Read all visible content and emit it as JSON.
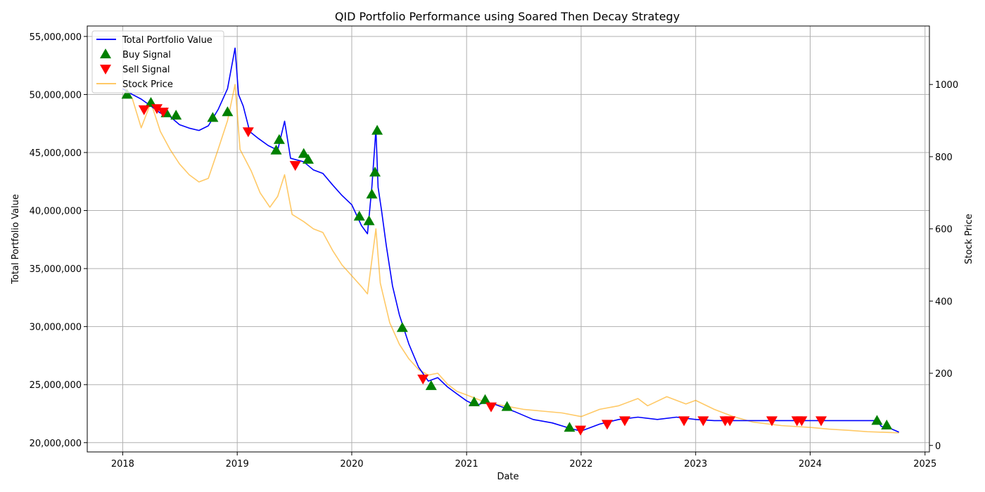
{
  "chart_data": {
    "type": "line",
    "title": "QID Portfolio Performance using Soared Then Decay Strategy",
    "xlabel": "Date",
    "ylabel_left": "Total Portfolio Value",
    "ylabel_right": "Stock Price",
    "x_ticks": [
      "2018",
      "2019",
      "2020",
      "2021",
      "2022",
      "2023",
      "2024",
      "2025"
    ],
    "x_range": [
      "2017-09-10",
      "2025-01-15"
    ],
    "y_left_range": [
      19200000,
      55900000
    ],
    "y_left_ticks": [
      20000000,
      25000000,
      30000000,
      35000000,
      40000000,
      45000000,
      50000000,
      55000000
    ],
    "y_left_tick_labels": [
      "20,000,000",
      "25,000,000",
      "30,000,000",
      "35,000,000",
      "40,000,000",
      "45,000,000",
      "50,000,000",
      "55,000,000"
    ],
    "y_right_range": [
      -18,
      1162
    ],
    "y_right_ticks": [
      0,
      200,
      400,
      600,
      800,
      1000
    ],
    "y_right_tick_labels": [
      "0",
      "200",
      "400",
      "600",
      "800",
      "1000"
    ],
    "grid": true,
    "legend_position": "top-left",
    "colors": {
      "portfolio": "#0000ff",
      "buy": "#008000",
      "sell": "#ff0000",
      "stock": "#ffa500"
    },
    "series": [
      {
        "name": "Total Portfolio Value",
        "axis": "left",
        "points": [
          [
            "2018-01-01",
            50500000
          ],
          [
            "2018-02-01",
            50000000
          ],
          [
            "2018-03-01",
            49600000
          ],
          [
            "2018-04-01",
            49000000
          ],
          [
            "2018-05-01",
            48400000
          ],
          [
            "2018-06-01",
            48100000
          ],
          [
            "2018-07-01",
            47400000
          ],
          [
            "2018-08-01",
            47100000
          ],
          [
            "2018-09-01",
            46900000
          ],
          [
            "2018-10-01",
            47300000
          ],
          [
            "2018-11-01",
            48700000
          ],
          [
            "2018-12-01",
            50500000
          ],
          [
            "2018-12-25",
            54000000
          ],
          [
            "2019-01-05",
            50000000
          ],
          [
            "2019-01-20",
            49000000
          ],
          [
            "2019-02-10",
            46800000
          ],
          [
            "2019-03-10",
            46200000
          ],
          [
            "2019-04-10",
            45600000
          ],
          [
            "2019-05-10",
            45200000
          ],
          [
            "2019-06-01",
            47700000
          ],
          [
            "2019-06-20",
            44500000
          ],
          [
            "2019-08-01",
            44200000
          ],
          [
            "2019-09-01",
            43500000
          ],
          [
            "2019-10-01",
            43200000
          ],
          [
            "2019-11-01",
            42200000
          ],
          [
            "2019-12-01",
            41300000
          ],
          [
            "2020-01-01",
            40500000
          ],
          [
            "2020-02-01",
            38700000
          ],
          [
            "2020-02-20",
            38000000
          ],
          [
            "2020-03-05",
            42000000
          ],
          [
            "2020-03-18",
            47000000
          ],
          [
            "2020-03-25",
            42000000
          ],
          [
            "2020-04-05",
            40000000
          ],
          [
            "2020-04-20",
            37000000
          ],
          [
            "2020-05-10",
            33500000
          ],
          [
            "2020-06-01",
            31000000
          ],
          [
            "2020-07-01",
            28500000
          ],
          [
            "2020-08-01",
            26500000
          ],
          [
            "2020-09-01",
            25300000
          ],
          [
            "2020-10-01",
            25600000
          ],
          [
            "2020-11-01",
            24800000
          ],
          [
            "2020-12-01",
            24200000
          ],
          [
            "2021-01-01",
            23600000
          ],
          [
            "2021-02-01",
            23200000
          ],
          [
            "2021-03-01",
            23500000
          ],
          [
            "2021-04-01",
            23300000
          ],
          [
            "2021-06-01",
            22700000
          ],
          [
            "2021-08-01",
            22000000
          ],
          [
            "2021-10-01",
            21700000
          ],
          [
            "2021-12-01",
            21200000
          ],
          [
            "2022-01-01",
            21000000
          ],
          [
            "2022-03-01",
            21600000
          ],
          [
            "2022-05-01",
            22000000
          ],
          [
            "2022-07-01",
            22200000
          ],
          [
            "2022-09-01",
            22000000
          ],
          [
            "2022-11-01",
            22200000
          ],
          [
            "2023-01-01",
            22000000
          ],
          [
            "2023-03-01",
            21900000
          ],
          [
            "2023-06-01",
            21900000
          ],
          [
            "2024-01-01",
            21900000
          ],
          [
            "2024-07-31",
            21900000
          ],
          [
            "2024-08-15",
            21400000
          ],
          [
            "2024-09-15",
            21200000
          ],
          [
            "2024-10-10",
            20900000
          ]
        ]
      },
      {
        "name": "Stock Price",
        "axis": "right",
        "points": [
          [
            "2018-01-01",
            1000
          ],
          [
            "2018-02-01",
            960
          ],
          [
            "2018-03-01",
            880
          ],
          [
            "2018-04-01",
            950
          ],
          [
            "2018-05-01",
            870
          ],
          [
            "2018-06-01",
            820
          ],
          [
            "2018-07-01",
            780
          ],
          [
            "2018-08-01",
            750
          ],
          [
            "2018-09-01",
            730
          ],
          [
            "2018-10-01",
            740
          ],
          [
            "2018-11-01",
            820
          ],
          [
            "2018-12-01",
            900
          ],
          [
            "2018-12-25",
            1000
          ],
          [
            "2019-01-10",
            820
          ],
          [
            "2019-02-15",
            760
          ],
          [
            "2019-03-15",
            700
          ],
          [
            "2019-04-15",
            660
          ],
          [
            "2019-05-10",
            690
          ],
          [
            "2019-06-01",
            750
          ],
          [
            "2019-06-25",
            640
          ],
          [
            "2019-08-01",
            620
          ],
          [
            "2019-09-01",
            600
          ],
          [
            "2019-10-01",
            590
          ],
          [
            "2019-11-01",
            540
          ],
          [
            "2019-12-01",
            500
          ],
          [
            "2020-01-01",
            470
          ],
          [
            "2020-02-01",
            440
          ],
          [
            "2020-02-20",
            420
          ],
          [
            "2020-03-18",
            600
          ],
          [
            "2020-04-01",
            450
          ],
          [
            "2020-05-01",
            340
          ],
          [
            "2020-06-01",
            280
          ],
          [
            "2020-07-01",
            240
          ],
          [
            "2020-08-01",
            210
          ],
          [
            "2020-09-01",
            195
          ],
          [
            "2020-10-01",
            200
          ],
          [
            "2020-11-01",
            170
          ],
          [
            "2020-12-01",
            150
          ],
          [
            "2021-01-01",
            140
          ],
          [
            "2021-03-01",
            120
          ],
          [
            "2021-05-01",
            110
          ],
          [
            "2021-07-01",
            100
          ],
          [
            "2021-09-01",
            95
          ],
          [
            "2021-11-01",
            90
          ],
          [
            "2022-01-01",
            80
          ],
          [
            "2022-03-01",
            100
          ],
          [
            "2022-05-01",
            110
          ],
          [
            "2022-07-01",
            130
          ],
          [
            "2022-08-01",
            110
          ],
          [
            "2022-10-01",
            135
          ],
          [
            "2022-12-01",
            115
          ],
          [
            "2023-01-01",
            125
          ],
          [
            "2023-03-01",
            100
          ],
          [
            "2023-05-01",
            80
          ],
          [
            "2023-07-01",
            65
          ],
          [
            "2023-10-01",
            55
          ],
          [
            "2024-01-01",
            50
          ],
          [
            "2024-03-01",
            45
          ],
          [
            "2024-05-01",
            42
          ],
          [
            "2024-07-01",
            38
          ],
          [
            "2024-10-10",
            35
          ]
        ]
      },
      {
        "name": "Buy Signal",
        "axis": "left",
        "marker": "triangle-up",
        "points": [
          [
            "2018-01-15",
            50000000
          ],
          [
            "2018-04-01",
            49300000
          ],
          [
            "2018-05-20",
            48400000
          ],
          [
            "2018-06-20",
            48200000
          ],
          [
            "2018-10-15",
            48000000
          ],
          [
            "2018-12-01",
            48500000
          ],
          [
            "2019-05-05",
            45200000
          ],
          [
            "2019-05-15",
            46100000
          ],
          [
            "2019-08-01",
            44900000
          ],
          [
            "2019-08-15",
            44400000
          ],
          [
            "2020-01-25",
            39500000
          ],
          [
            "2020-02-25",
            39100000
          ],
          [
            "2020-03-05",
            41400000
          ],
          [
            "2020-03-15",
            43300000
          ],
          [
            "2020-03-22",
            46900000
          ],
          [
            "2020-06-10",
            29900000
          ],
          [
            "2020-09-10",
            24900000
          ],
          [
            "2021-01-25",
            23500000
          ],
          [
            "2021-03-01",
            23700000
          ],
          [
            "2021-05-10",
            23100000
          ],
          [
            "2021-11-25",
            21300000
          ],
          [
            "2024-08-01",
            21900000
          ],
          [
            "2024-09-01",
            21500000
          ]
        ]
      },
      {
        "name": "Sell Signal",
        "axis": "left",
        "marker": "triangle-down",
        "points": [
          [
            "2018-03-10",
            48700000
          ],
          [
            "2018-04-20",
            48800000
          ],
          [
            "2018-05-10",
            48500000
          ],
          [
            "2019-02-05",
            46800000
          ],
          [
            "2019-07-05",
            43900000
          ],
          [
            "2020-08-15",
            25500000
          ],
          [
            "2021-03-20",
            23100000
          ],
          [
            "2021-12-30",
            21100000
          ],
          [
            "2022-03-25",
            21600000
          ],
          [
            "2022-05-20",
            21900000
          ],
          [
            "2022-11-25",
            21900000
          ],
          [
            "2023-01-25",
            21900000
          ],
          [
            "2023-04-05",
            21900000
          ],
          [
            "2023-04-20",
            21900000
          ],
          [
            "2023-09-01",
            21900000
          ],
          [
            "2023-11-20",
            21900000
          ],
          [
            "2023-12-05",
            21900000
          ],
          [
            "2024-02-05",
            21900000
          ]
        ]
      }
    ],
    "legend": [
      {
        "label": "Total Portfolio Value",
        "key": "portfolio"
      },
      {
        "label": "Buy Signal",
        "key": "buy"
      },
      {
        "label": "Sell Signal",
        "key": "sell"
      },
      {
        "label": "Stock Price",
        "key": "stock"
      }
    ]
  }
}
